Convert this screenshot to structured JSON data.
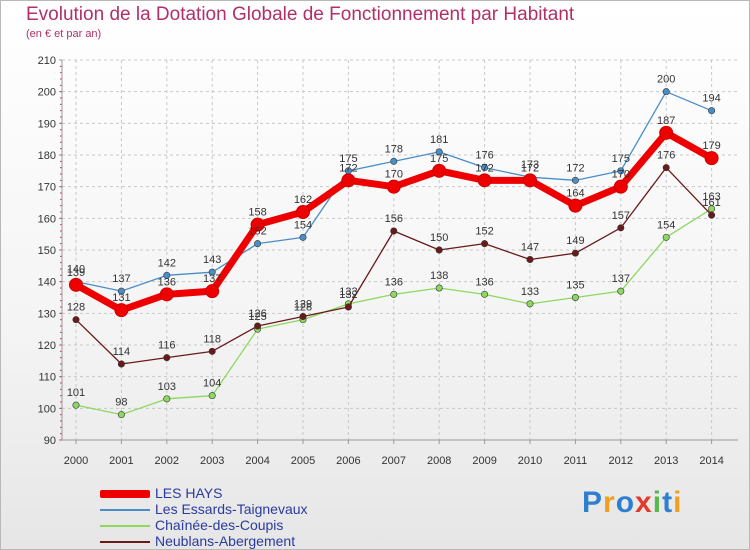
{
  "header": {
    "title": "Evolution de la Dotation Globale de Fonctionnement par Habitant",
    "subtitle": "(en € et par an)"
  },
  "logo": {
    "text": "Proxiti",
    "letters": [
      "P",
      "r",
      "o",
      "x",
      "i",
      "t",
      "i"
    ],
    "colors": [
      "#2f7fd0",
      "#f0a020",
      "#2f7fd0",
      "#e23a2a",
      "#5ab84a",
      "#2f7fd0",
      "#f0a020"
    ]
  },
  "chart_data": {
    "type": "line",
    "title": "Evolution de la Dotation Globale de Fonctionnement par Habitant",
    "subtitle": "(en € et par an)",
    "xlabel": "",
    "ylabel": "",
    "categories": [
      "2000",
      "2001",
      "2002",
      "2003",
      "2004",
      "2005",
      "2006",
      "2007",
      "2008",
      "2009",
      "2010",
      "2011",
      "2012",
      "2013",
      "2014"
    ],
    "ylim": [
      90,
      210
    ],
    "yticks": [
      90,
      100,
      110,
      120,
      130,
      140,
      150,
      160,
      170,
      180,
      190,
      200,
      210
    ],
    "grid": true,
    "legend_position": "bottom-left",
    "series": [
      {
        "name": "Les Essards-Taignevaux",
        "color": "#4a8ec8",
        "values": [
          140,
          137,
          142,
          143,
          152,
          154,
          175,
          178,
          181,
          176,
          173,
          172,
          175,
          200,
          194
        ]
      },
      {
        "name": "Chaînée-des-Coupis",
        "color": "#8cd860",
        "values": [
          101,
          98,
          103,
          104,
          125,
          128,
          133,
          136,
          138,
          136,
          133,
          135,
          137,
          154,
          163
        ]
      },
      {
        "name": "Neublans-Abergement",
        "color": "#6b1a1a",
        "values": [
          128,
          114,
          116,
          118,
          126,
          129,
          132,
          156,
          150,
          152,
          147,
          149,
          157,
          176,
          161
        ]
      },
      {
        "name": "LES HAYS",
        "color": "#ee0000",
        "values": [
          139,
          131,
          136,
          137,
          158,
          162,
          172,
          170,
          175,
          172,
          172,
          164,
          170,
          187,
          179
        ]
      }
    ],
    "legend_order": [
      "LES HAYS",
      "Les Essards-Taignevaux",
      "Chaînée-des-Coupis",
      "Neublans-Abergement"
    ]
  }
}
